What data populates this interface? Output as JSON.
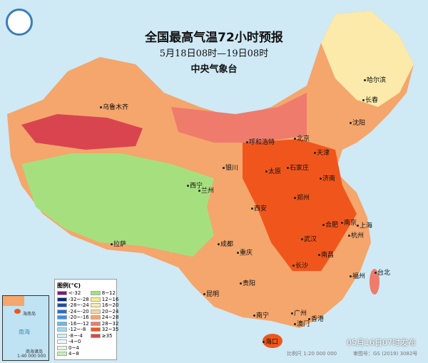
{
  "title": "全国最高气温72小时预报",
  "subtitle": "5月18日08时—19日08时",
  "agency": "中央气象台",
  "issued": "05月16日07时发布",
  "scale": "比例尺 1:20 000 000",
  "approval": "审图号：GS (2019) 3082号",
  "inset": {
    "label_sea": "南海",
    "label_island": "海南岛",
    "scale": "1:40 000 000",
    "label_islands": "南海诸岛"
  },
  "legend": {
    "title": "图例(℃)",
    "items": [
      {
        "label": "<-32",
        "color": "#7b1a7e"
      },
      {
        "label": "-32~-28",
        "color": "#0a2a7a"
      },
      {
        "label": "-28~-24",
        "color": "#1f4ea0"
      },
      {
        "label": "-24~-20",
        "color": "#2e6cc4"
      },
      {
        "label": "-20~-16",
        "color": "#3b8ee0"
      },
      {
        "label": "-16~-12",
        "color": "#6bb6ee"
      },
      {
        "label": "-12~-8",
        "color": "#a3d8ef"
      },
      {
        "label": "-8~-4",
        "color": "#cdeef5"
      },
      {
        "label": "-4~0",
        "color": "#eef9fb"
      },
      {
        "label": "0~4",
        "color": "#e4f6d8"
      },
      {
        "label": "4~8",
        "color": "#c6edb8"
      },
      {
        "label": "8~12",
        "color": "#a6e07e"
      },
      {
        "label": "12~16",
        "color": "#f3f08a"
      },
      {
        "label": "16~20",
        "color": "#fbeaaa"
      },
      {
        "label": "20~24",
        "color": "#f9d39a"
      },
      {
        "label": "24~28",
        "color": "#f4a66c"
      },
      {
        "label": "28~32",
        "color": "#ef7b6c"
      },
      {
        "label": "32~35",
        "color": "#f0561c"
      },
      {
        "label": "≥35",
        "color": "#d9454f"
      }
    ]
  },
  "cities": [
    "乌鲁木齐",
    "哈尔滨",
    "长春",
    "沈阳",
    "北京",
    "天津",
    "呼和浩特",
    "石家庄",
    "太原",
    "济南",
    "银川",
    "西宁",
    "兰州",
    "西安",
    "郑州",
    "南京",
    "合肥",
    "上海",
    "杭州",
    "武汉",
    "成都",
    "重庆",
    "长沙",
    "南昌",
    "拉萨",
    "贵阳",
    "福州",
    "台北",
    "昆明",
    "南宁",
    "广州",
    "香港",
    "澳门",
    "海口"
  ]
}
